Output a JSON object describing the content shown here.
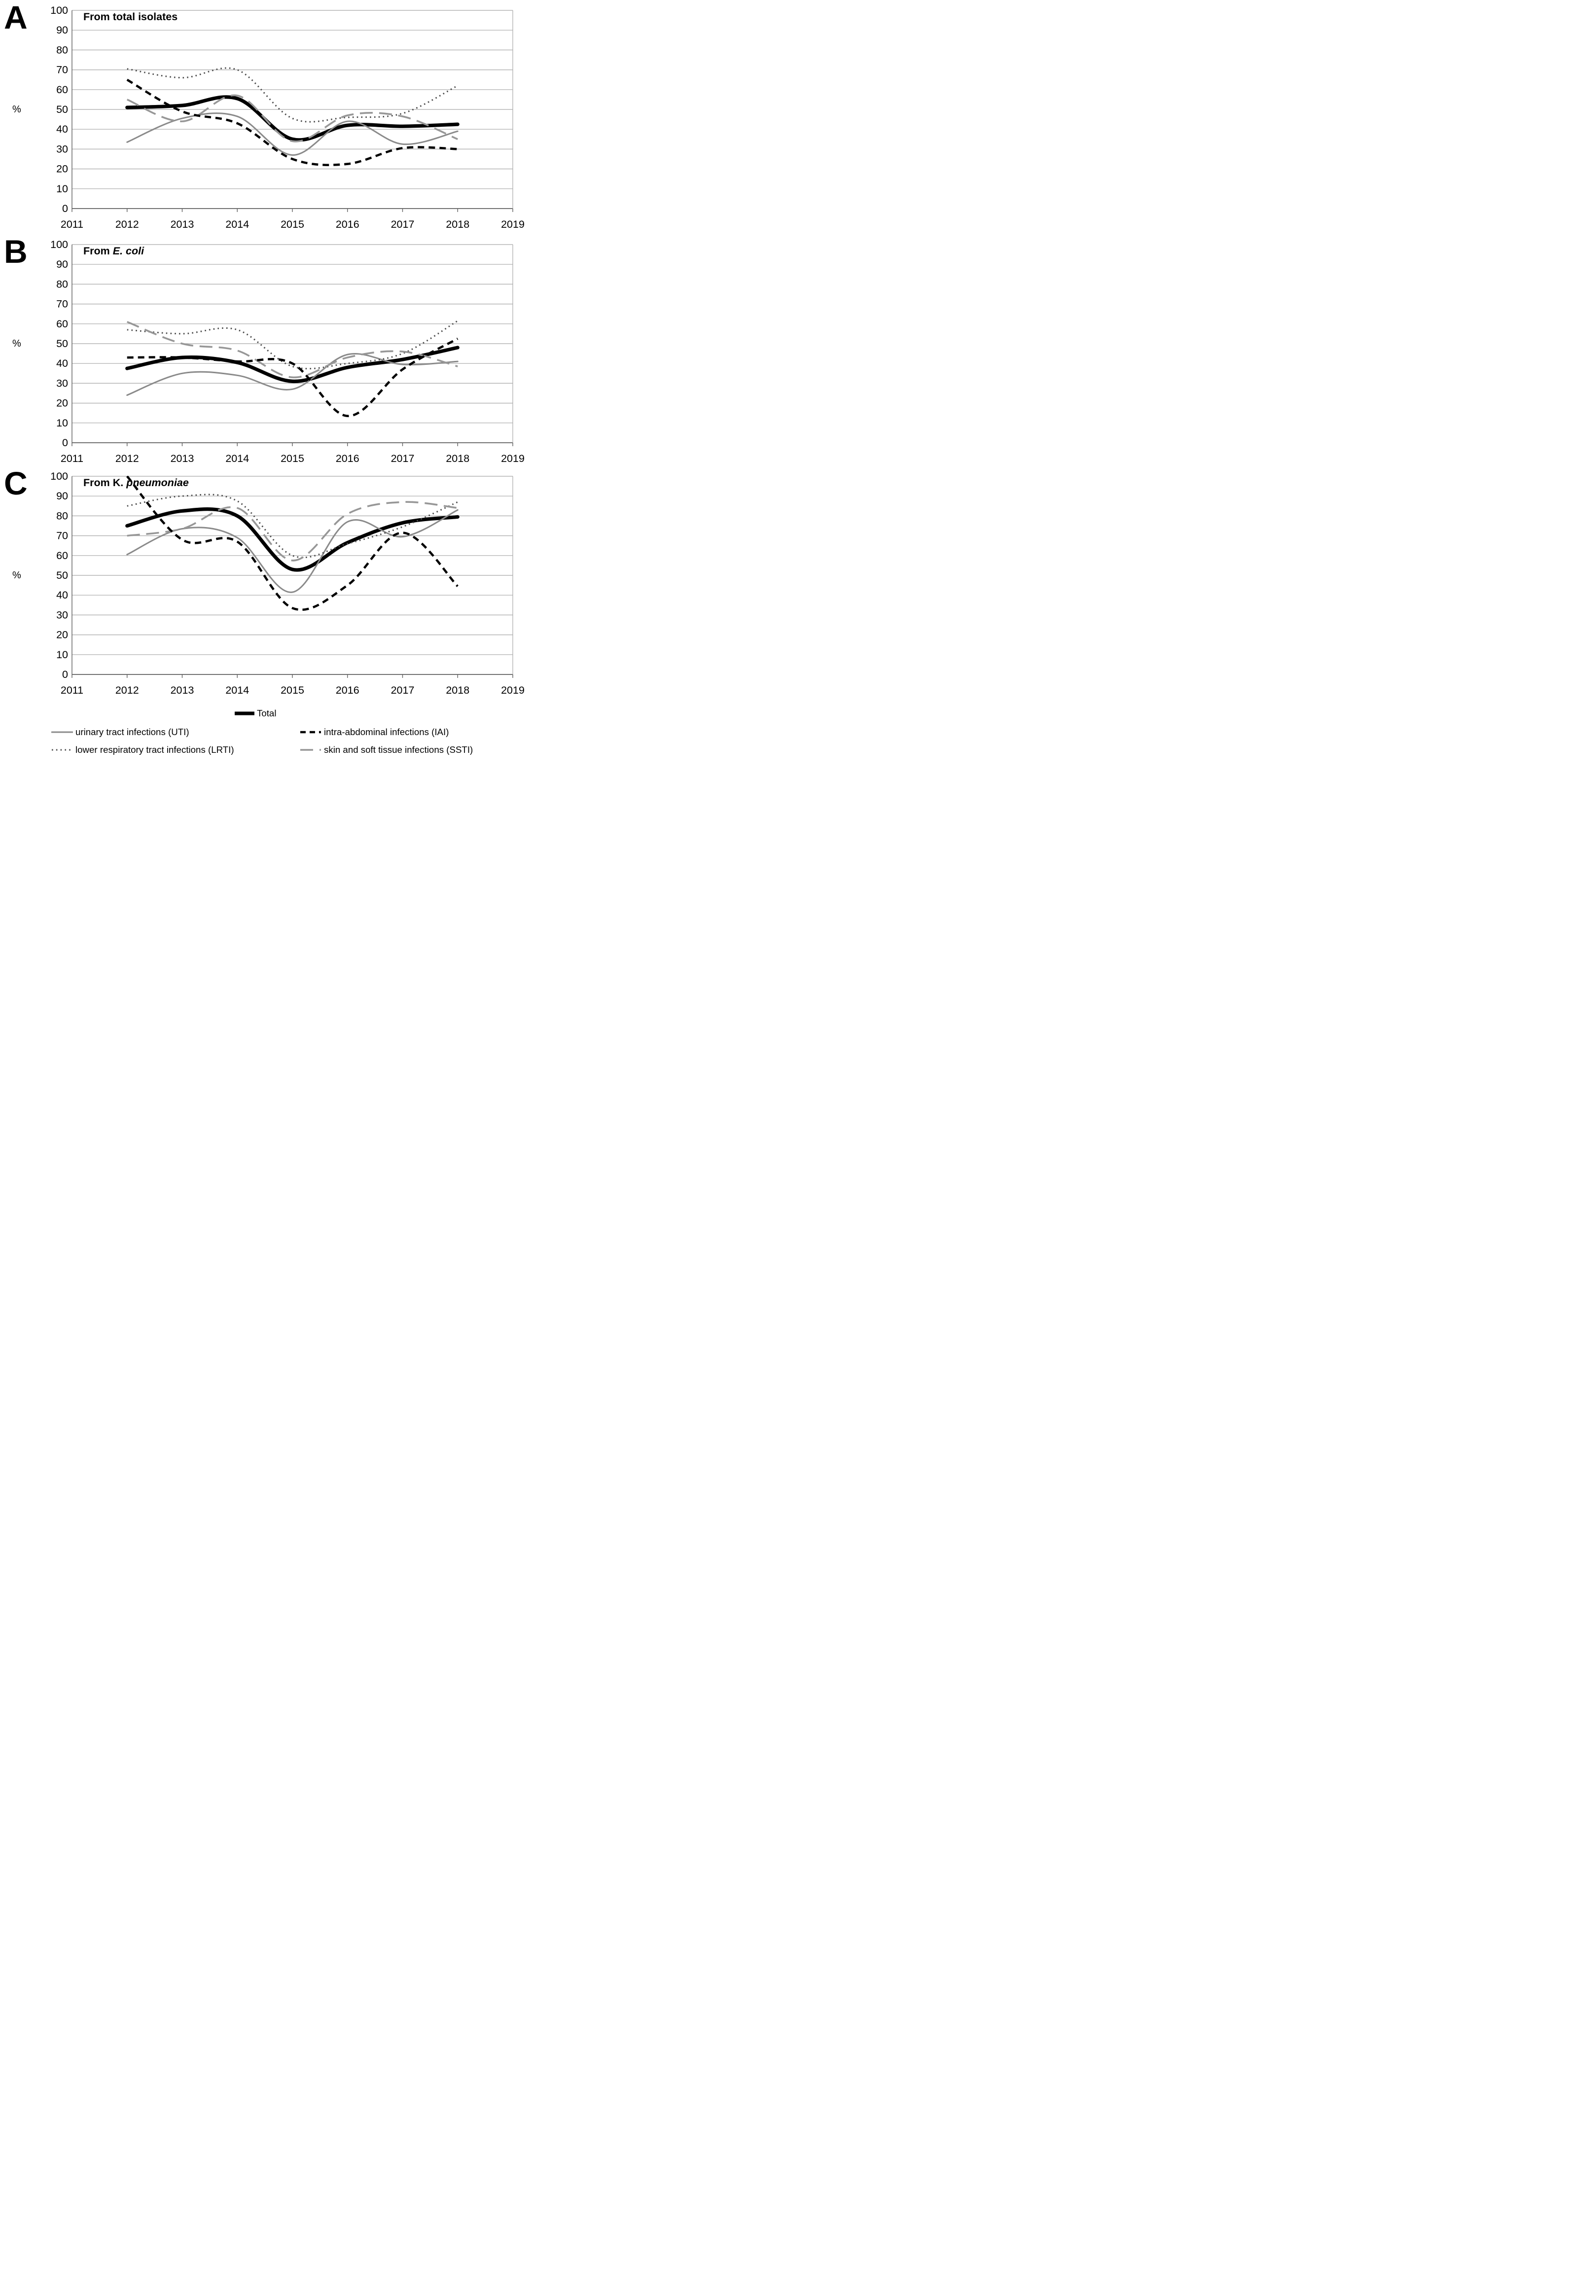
{
  "axes": {
    "x_tick_labels": [
      "2011",
      "2012",
      "2013",
      "2014",
      "2015",
      "2016",
      "2017",
      "2018",
      "2019"
    ],
    "y_tick_labels": [
      "100",
      "90",
      "80",
      "70",
      "60",
      "50",
      "40",
      "30",
      "20",
      "10",
      "0"
    ],
    "x_range": [
      2011,
      2019
    ],
    "y_range": [
      0,
      100
    ],
    "y_unit": "%",
    "grid_color": "#a8a8a8",
    "axis_color": "#5f5f5f"
  },
  "legend": {
    "entries": [
      {
        "key": "total",
        "label": "Total",
        "style": "thick-solid",
        "color": "#000000"
      },
      {
        "key": "uti",
        "label": "urinary tract infections (UTI)",
        "style": "solid",
        "color": "#8a8a8a"
      },
      {
        "key": "iai",
        "label": "intra-abdominal infections (IAI)",
        "style": "dashed",
        "color": "#000000"
      },
      {
        "key": "lrti",
        "label": "lower respiratory tract infections (LRTI)",
        "style": "dotted",
        "color": "#4d4d4d"
      },
      {
        "key": "ssti",
        "label": "skin and soft tissue infections (SSTI)",
        "style": "long-dash",
        "color": "#979797"
      }
    ]
  },
  "chart_data": [
    {
      "type": "line",
      "panel": "A",
      "title": {
        "prefix": "From total isolates",
        "italic": "",
        "rest": ""
      },
      "ylabel": "%",
      "xlim": [
        2011,
        2019
      ],
      "ylim": [
        0,
        100
      ],
      "grid": true,
      "x": [
        2012,
        2013,
        2014,
        2015,
        2016,
        2017,
        2018
      ],
      "series": [
        {
          "key": "total",
          "name": "Total",
          "style": "thick-solid",
          "color": "#000000",
          "values": [
            51,
            52,
            55.5,
            35,
            42,
            41.5,
            42.5
          ]
        },
        {
          "key": "uti",
          "name": "urinary tract infections (UTI)",
          "style": "solid",
          "color": "#8a8a8a",
          "values": [
            33.5,
            45.5,
            46.5,
            27,
            44,
            32.5,
            39
          ]
        },
        {
          "key": "iai",
          "name": "intra-abdominal infections (IAI)",
          "style": "dashed",
          "color": "#000000",
          "values": [
            65,
            49,
            43,
            25,
            22.5,
            30.5,
            30
          ]
        },
        {
          "key": "lrti",
          "name": "lower respiratory tract infections (LRTI)",
          "style": "dotted",
          "color": "#4d4d4d",
          "values": [
            70.5,
            66,
            70,
            45.5,
            46,
            48,
            62
          ]
        },
        {
          "key": "ssti",
          "name": "skin and soft tissue infections (SSTI)",
          "style": "long-dash",
          "color": "#979797",
          "values": [
            55,
            44,
            57,
            34,
            47,
            46.5,
            35
          ]
        }
      ]
    },
    {
      "type": "line",
      "panel": "B",
      "title": {
        "prefix": "From ",
        "italic": "E. coli",
        "rest": ""
      },
      "ylabel": "%",
      "xlim": [
        2011,
        2019
      ],
      "ylim": [
        0,
        100
      ],
      "grid": true,
      "x": [
        2012,
        2013,
        2014,
        2015,
        2016,
        2017,
        2018
      ],
      "series": [
        {
          "key": "total",
          "name": "Total",
          "style": "thick-solid",
          "color": "#000000",
          "values": [
            37.5,
            43,
            40.5,
            31,
            38,
            42,
            48
          ]
        },
        {
          "key": "uti",
          "name": "urinary tract infections (UTI)",
          "style": "solid",
          "color": "#8a8a8a",
          "values": [
            24,
            35,
            34,
            27,
            44.5,
            39.5,
            41
          ]
        },
        {
          "key": "iai",
          "name": "intra-abdominal infections (IAI)",
          "style": "dashed",
          "color": "#000000",
          "values": [
            43,
            43,
            41,
            40,
            13.5,
            37,
            52.5
          ]
        },
        {
          "key": "lrti",
          "name": "lower respiratory tract infections (LRTI)",
          "style": "dotted",
          "color": "#4d4d4d",
          "values": [
            57,
            55,
            57,
            38.5,
            40,
            45,
            61.5
          ]
        },
        {
          "key": "ssti",
          "name": "skin and soft tissue infections (SSTI)",
          "style": "long-dash",
          "color": "#979797",
          "values": [
            61,
            50,
            46.5,
            33,
            43,
            46,
            38.5
          ]
        }
      ]
    },
    {
      "type": "line",
      "panel": "C",
      "title": {
        "prefix": "From K. ",
        "italic": "pneumoniae",
        "rest": ""
      },
      "ylabel": "%",
      "xlim": [
        2011,
        2019
      ],
      "ylim": [
        0,
        100
      ],
      "grid": true,
      "x": [
        2012,
        2013,
        2014,
        2015,
        2016,
        2017,
        2018
      ],
      "series": [
        {
          "key": "total",
          "name": "Total",
          "style": "thick-solid",
          "color": "#000000",
          "values": [
            75,
            82.5,
            80,
            53,
            66.5,
            76.5,
            79.5
          ]
        },
        {
          "key": "uti",
          "name": "urinary tract infections (UTI)",
          "style": "solid",
          "color": "#8a8a8a",
          "values": [
            60.5,
            73.5,
            69,
            41.5,
            77,
            69.5,
            83
          ]
        },
        {
          "key": "iai",
          "name": "intra-abdominal infections (IAI)",
          "style": "dashed",
          "color": "#000000",
          "values": [
            100,
            68,
            67,
            33.5,
            45,
            71.5,
            44.5
          ]
        },
        {
          "key": "lrti",
          "name": "lower respiratory tract infections (LRTI)",
          "style": "dotted",
          "color": "#4d4d4d",
          "values": [
            85,
            90,
            87.5,
            60,
            66,
            74.5,
            87
          ]
        },
        {
          "key": "ssti",
          "name": "skin and soft tissue infections (SSTI)",
          "style": "long-dash",
          "color": "#979797",
          "values": [
            70,
            73.5,
            84,
            57.5,
            81,
            87,
            84
          ]
        }
      ]
    }
  ]
}
